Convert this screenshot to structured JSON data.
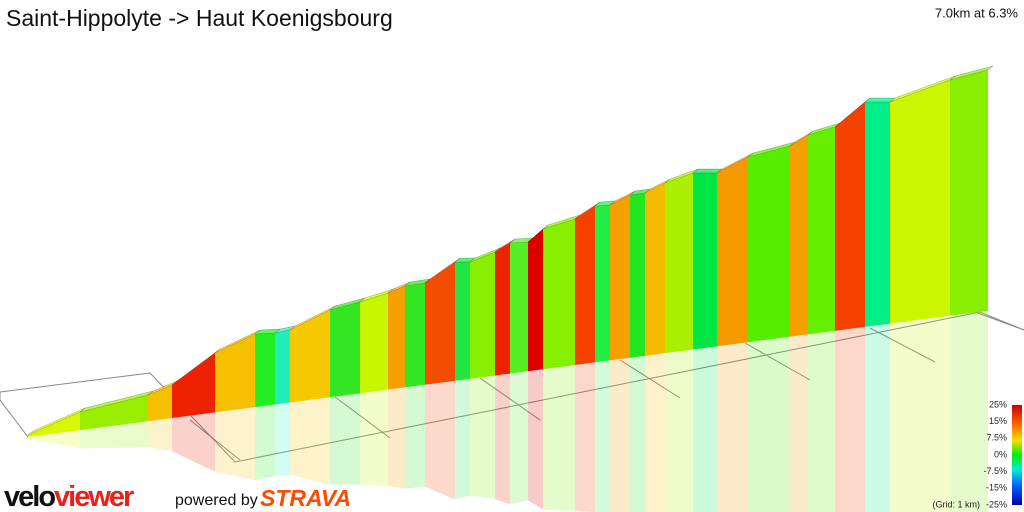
{
  "header": {
    "title": "Saint-Hippolyte -> Haut Koenigsbourg",
    "summary": "7.0km at 6.3%"
  },
  "legend": {
    "labels": [
      "25%",
      "15%",
      "7.5%",
      "0%",
      "-7.5%",
      "-15%",
      "-25%"
    ],
    "grid_note": "(Grid: 1 km)"
  },
  "footer": {
    "logo_velo": "velo",
    "logo_viewer": "viewer",
    "powered": "powered by",
    "strava": "STRAVA"
  }
}
